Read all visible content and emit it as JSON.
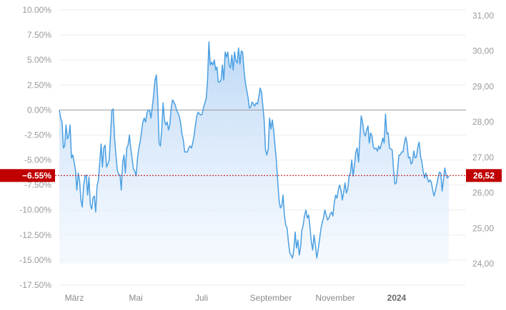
{
  "chart_data": {
    "type": "area",
    "title": "",
    "left_axis": {
      "ticks": [
        "10.00%",
        "7.50%",
        "5.00%",
        "2.50%",
        "0.00%",
        "-2.50%",
        "-5.00%",
        "-7.50%",
        "-10.00%",
        "-12.50%",
        "-15.00%",
        "-17.50%"
      ],
      "range_pct": [
        -17.5,
        10
      ]
    },
    "right_axis": {
      "ticks": [
        "31,00",
        "30,00",
        "29,00",
        "28,00",
        "27,00",
        "26,00",
        "25,00",
        "24,00"
      ],
      "range_price": [
        24,
        31
      ]
    },
    "x_axis": {
      "ticks": [
        "März",
        "Mai",
        "Juli",
        "September",
        "November",
        "2024"
      ],
      "bold_tick": "2024"
    },
    "current": {
      "percent_label": "−6.55%",
      "price_label": "26,52",
      "percent": -6.55,
      "price": 26.52
    },
    "baseline_pct": 0,
    "colors": {
      "line": "#4a9fe2",
      "fill": "#cfe3f8",
      "marker": "#c00000",
      "zero_line": "#999999",
      "grid": "#eeeeee"
    },
    "series": [
      {
        "values_pct": [
          0.0,
          -0.8,
          -1.2,
          -3.8,
          -3.6,
          -1.5,
          -2.9,
          -2.6,
          -1.5,
          -4.8,
          -4.5,
          -5.2,
          -6.0,
          -8.0,
          -6.3,
          -7.0,
          -9.0,
          -9.7,
          -7.7,
          -6.7,
          -6.5,
          -8.5,
          -6.7,
          -9.5,
          -9.9,
          -8.8,
          -8.6,
          -10.2,
          -7.6,
          -7.0,
          -5.2,
          -3.4,
          -5.7,
          -3.8,
          -3.5,
          -5.7,
          -5.4,
          -5.0,
          -2.5,
          0.0,
          0.1,
          -2.8,
          -4.5,
          -6.0,
          -6.4,
          -6.5,
          -8.0,
          -5.3,
          -4.5,
          -6.3,
          -3.8,
          -3.5,
          -2.5,
          -3.8,
          -4.8,
          -5.9,
          -6.1,
          -6.6,
          -4.8,
          -3.8,
          -3.2,
          -2.2,
          -1.2,
          -0.8,
          -1.2,
          -0.3,
          0.0,
          0.0,
          -0.8,
          0.3,
          1.5,
          3.0,
          3.5,
          1.2,
          -3.3,
          -3.6,
          -2.0,
          0.7,
          -1.0,
          -1.5,
          -1.2,
          -2.0,
          -1.5,
          0.2,
          1.0,
          0.8,
          0.5,
          0.0,
          -0.3,
          -0.6,
          -1.3,
          -2.4,
          -3.0,
          -4.2,
          -4.2,
          -4.2,
          -3.8,
          -3.6,
          -3.8,
          -3.3,
          -2.5,
          -1.5,
          -0.6,
          -0.2,
          -0.4,
          -0.5,
          -0.4,
          0.3,
          0.7,
          1.2,
          3.0,
          6.8,
          4.5,
          4.8,
          4.5,
          5.0,
          4.0,
          4.3,
          2.8,
          2.8,
          3.0,
          4.5,
          3.0,
          5.8,
          5.3,
          5.8,
          4.5,
          4.2,
          5.5,
          4.0,
          5.8,
          4.9,
          4.7,
          6.2,
          4.6,
          5.9,
          5.8,
          4.0,
          2.8,
          2.0,
          1.3,
          0.2,
          0.3,
          0.8,
          0.6,
          0.4,
          0.7,
          0.6,
          1.3,
          2.2,
          1.8,
          0.4,
          -1.0,
          -4.0,
          -4.5,
          -3.9,
          -0.8,
          -1.9,
          -1.0,
          -2.0,
          -3.5,
          -5.0,
          -7.0,
          -9.0,
          -9.8,
          -9.6,
          -8.5,
          -10.5,
          -11.5,
          -11.8,
          -13.2,
          -14.3,
          -14.5,
          -14.8,
          -14.0,
          -12.2,
          -13.8,
          -13.0,
          -14.5,
          -13.7,
          -12.0,
          -11.5,
          -10.5,
          -10.0,
          -10.8,
          -10.5,
          -11.8,
          -13.2,
          -14.0,
          -12.5,
          -13.5,
          -14.8,
          -14.0,
          -13.0,
          -12.0,
          -11.3,
          -10.8,
          -10.0,
          -10.5,
          -11.0,
          -10.8,
          -10.4,
          -10.2,
          -10.6,
          -9.3,
          -8.5,
          -8.8,
          -8.0,
          -7.5,
          -8.0,
          -9.0,
          -8.2,
          -7.3,
          -8.3,
          -7.9,
          -6.6,
          -6.3,
          -5.0,
          -6.6,
          -5.5,
          -4.2,
          -3.8,
          -5.2,
          -2.8,
          -0.6,
          -1.2,
          -2.3,
          -2.6,
          -2.0,
          -1.6,
          -3.3,
          -2.3,
          -2.6,
          -3.7,
          -3.9,
          -3.8,
          -4.1,
          -3.6,
          -3.9,
          -3.4,
          -2.8,
          -3.3,
          -0.4,
          -2.4,
          -2.3,
          -3.8,
          -3.9,
          -4.0,
          -6.0,
          -7.4,
          -7.3,
          -6.0,
          -4.5,
          -4.5,
          -4.2,
          -4.2,
          -3.3,
          -2.7,
          -3.3,
          -4.8,
          -4.7,
          -5.4,
          -5.2,
          -4.1,
          -4.8,
          -4.7,
          -3.7,
          -3.2,
          -4.6,
          -5.2,
          -6.2,
          -6.8,
          -6.3,
          -6.8,
          -7.2,
          -7.0,
          -7.2,
          -8.0,
          -8.6,
          -8.1,
          -7.5,
          -6.8,
          -6.2,
          -6.3,
          -8.1,
          -7.0,
          -5.8,
          -6.5,
          -6.8,
          -6.6
        ],
        "name": ""
      }
    ]
  }
}
